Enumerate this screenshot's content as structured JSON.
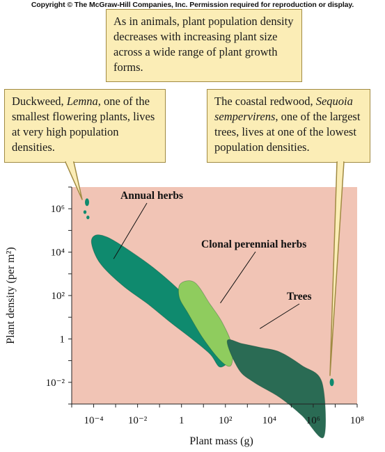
{
  "copyright": "Copyright © The McGraw-Hill Companies, Inc. Permission required for reproduction or display.",
  "callouts": {
    "main": "As in animals, plant population density decreases with increasing plant size across a wide range of plant growth forms.",
    "left": {
      "pre": "Duckweed, ",
      "italic": "Lemna",
      "post": ", one of the smallest flowering plants, lives at very high population densities."
    },
    "right": {
      "pre": "The coastal redwood, ",
      "italic": "Sequoia sempervirens",
      "post": ", one of the largest trees, lives at one of the lowest population densities."
    }
  },
  "colors": {
    "background": "#f1c4b5",
    "annual_herbs": "#0f8a6e",
    "clonal_perennial_herbs": "#8fcc5e",
    "trees": "#2a6b54",
    "duckweed": "#0f8a6e",
    "redwood": "#0f8a6e"
  },
  "chart_data": {
    "type": "scatter",
    "xlabel": "Plant mass (g)",
    "ylabel": "Plant density (per m²)",
    "x_scale": "log10",
    "y_scale": "log10",
    "xlim": [
      1e-05,
      100000000.0
    ],
    "ylim": [
      0.001,
      10000000.0
    ],
    "x_ticks": [
      {
        "value": 0.0001,
        "label": "10⁻⁴"
      },
      {
        "value": 0.01,
        "label": "10⁻²"
      },
      {
        "value": 1,
        "label": "1"
      },
      {
        "value": 100.0,
        "label": "10²"
      },
      {
        "value": 10000.0,
        "label": "10⁴"
      },
      {
        "value": 1000000.0,
        "label": "10⁶"
      },
      {
        "value": 100000000.0,
        "label": "10⁸"
      }
    ],
    "y_ticks": [
      {
        "value": 1000000.0,
        "label": "10⁶"
      },
      {
        "value": 10000.0,
        "label": "10⁴"
      },
      {
        "value": 100.0,
        "label": "10²"
      },
      {
        "value": 1,
        "label": "1"
      },
      {
        "value": 0.01,
        "label": "10⁻²"
      }
    ],
    "series": [
      {
        "name": "Annual herbs",
        "color": "#0f8a6e",
        "outline": [
          [
            8e-05,
            25000
          ],
          [
            0.0002,
            3000
          ],
          [
            0.002,
            300
          ],
          [
            0.03,
            40
          ],
          [
            0.3,
            6
          ],
          [
            3,
            1
          ],
          [
            20,
            0.2
          ],
          [
            60,
            0.05
          ],
          [
            200,
            0.2
          ],
          [
            40,
            2
          ],
          [
            6,
            20
          ],
          [
            0.7,
            200
          ],
          [
            0.05,
            2000
          ],
          [
            0.003,
            15000
          ],
          [
            0.0004,
            50000
          ],
          [
            0.00012,
            60000
          ]
        ]
      },
      {
        "name": "Clonal perennial herbs",
        "color": "#8fcc5e",
        "outline": [
          [
            0.9,
            350
          ],
          [
            0.8,
            80
          ],
          [
            2,
            15
          ],
          [
            10,
            1
          ],
          [
            60,
            0.1
          ],
          [
            180,
            0.06
          ],
          [
            200,
            0.5
          ],
          [
            70,
            6
          ],
          [
            20,
            40
          ],
          [
            4,
            400
          ]
        ]
      },
      {
        "name": "Trees",
        "color": "#2a6b54",
        "outline": [
          [
            120,
            0.8
          ],
          [
            400,
            0.04
          ],
          [
            2000,
            0.01
          ],
          [
            30000,
            0.002
          ],
          [
            300000,
            0.0003
          ],
          [
            3000000,
            3e-05
          ],
          [
            2500000,
            0.01
          ],
          [
            300000,
            0.06
          ],
          [
            30000,
            0.25
          ],
          [
            4000,
            0.4
          ],
          [
            600,
            0.6
          ]
        ]
      },
      {
        "name": "Duckweed",
        "color": "#0f8a6e",
        "points": [
          [
            5e-05,
            2000000
          ],
          [
            4e-05,
            700000
          ],
          [
            5.5e-05,
            400000
          ]
        ]
      },
      {
        "name": "Sequoia",
        "color": "#0f8a6e",
        "points": [
          [
            7000000,
            0.01
          ]
        ]
      }
    ],
    "annotations": [
      {
        "text": "Annual herbs",
        "anchor": [
          0.00081,
          4900
        ]
      },
      {
        "text": "Clonal perennial herbs",
        "anchor": [
          58.9,
          45
        ]
      },
      {
        "text": "Trees",
        "anchor": [
          3715,
          3
        ]
      }
    ]
  }
}
